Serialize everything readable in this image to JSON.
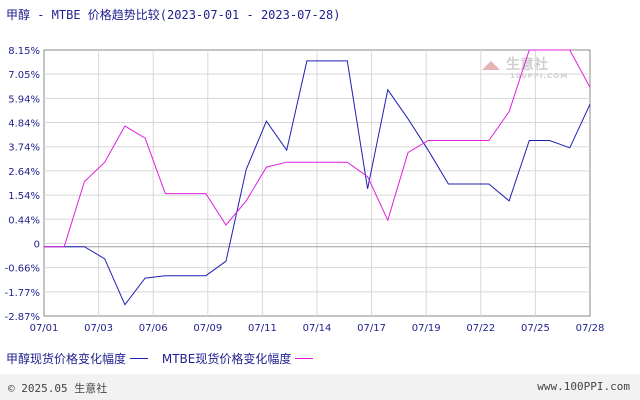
{
  "title": "甲醇 - MTBE 价格趋势比较(2023-07-01 - 2023-07-28)",
  "watermark": {
    "text": "生意社",
    "sub": "100PPI.COM"
  },
  "footer": {
    "left": "© 2025.05 生意社",
    "right": "www.100PPI.com"
  },
  "colors": {
    "series1": "#1f1fb4",
    "series2": "#e020e0",
    "grid": "#d8d8d8",
    "axis": "#888888",
    "text": "#1f1f8f"
  },
  "chart_data": {
    "type": "line",
    "title": "甲醇 - MTBE 价格趋势比较(2023-07-01 - 2023-07-28)",
    "xlabel": "",
    "ylabel": "",
    "grid": true,
    "legend_position": "bottom",
    "x_tick_labels": [
      "07/01",
      "07/03",
      "07/06",
      "07/09",
      "07/11",
      "07/14",
      "07/17",
      "07/19",
      "07/22",
      "07/25",
      "07/28"
    ],
    "y_tick_labels": [
      "8.15%",
      "7.05%",
      "5.94%",
      "4.84%",
      "3.74%",
      "2.64%",
      "1.54%",
      "0.44%",
      "0",
      "-0.66%",
      "-1.77%",
      "-2.87%"
    ],
    "ylim": [
      -2.87,
      8.15
    ],
    "x_dates": [
      "07/01",
      "07/02",
      "07/03",
      "07/04",
      "07/05",
      "07/06",
      "07/07",
      "07/08",
      "07/09",
      "07/10",
      "07/11",
      "07/12",
      "07/13",
      "07/14",
      "07/15",
      "07/16",
      "07/17",
      "07/18",
      "07/19",
      "07/20",
      "07/21",
      "07/22",
      "07/23",
      "07/24",
      "07/25",
      "07/26",
      "07/27",
      "07/28"
    ],
    "series": [
      {
        "name": "甲醇现货价格变化幅度",
        "values": [
          0,
          0,
          0,
          -0.5,
          -2.4,
          -1.3,
          -1.2,
          -1.2,
          -1.2,
          -0.6,
          3.2,
          5.2,
          4.0,
          7.7,
          7.7,
          7.7,
          2.4,
          6.5,
          5.3,
          4.0,
          2.6,
          2.6,
          2.6,
          1.9,
          4.4,
          4.4,
          4.1,
          5.9
        ]
      },
      {
        "name": "MTBE现货价格变化幅度",
        "values": [
          0,
          0,
          2.7,
          3.5,
          5.0,
          4.5,
          2.2,
          2.2,
          2.2,
          0.9,
          1.9,
          3.3,
          3.5,
          3.5,
          3.5,
          3.5,
          2.9,
          1.1,
          3.9,
          4.4,
          4.4,
          4.4,
          4.4,
          5.6,
          8.3,
          9.2,
          8.6,
          6.6
        ]
      }
    ]
  }
}
